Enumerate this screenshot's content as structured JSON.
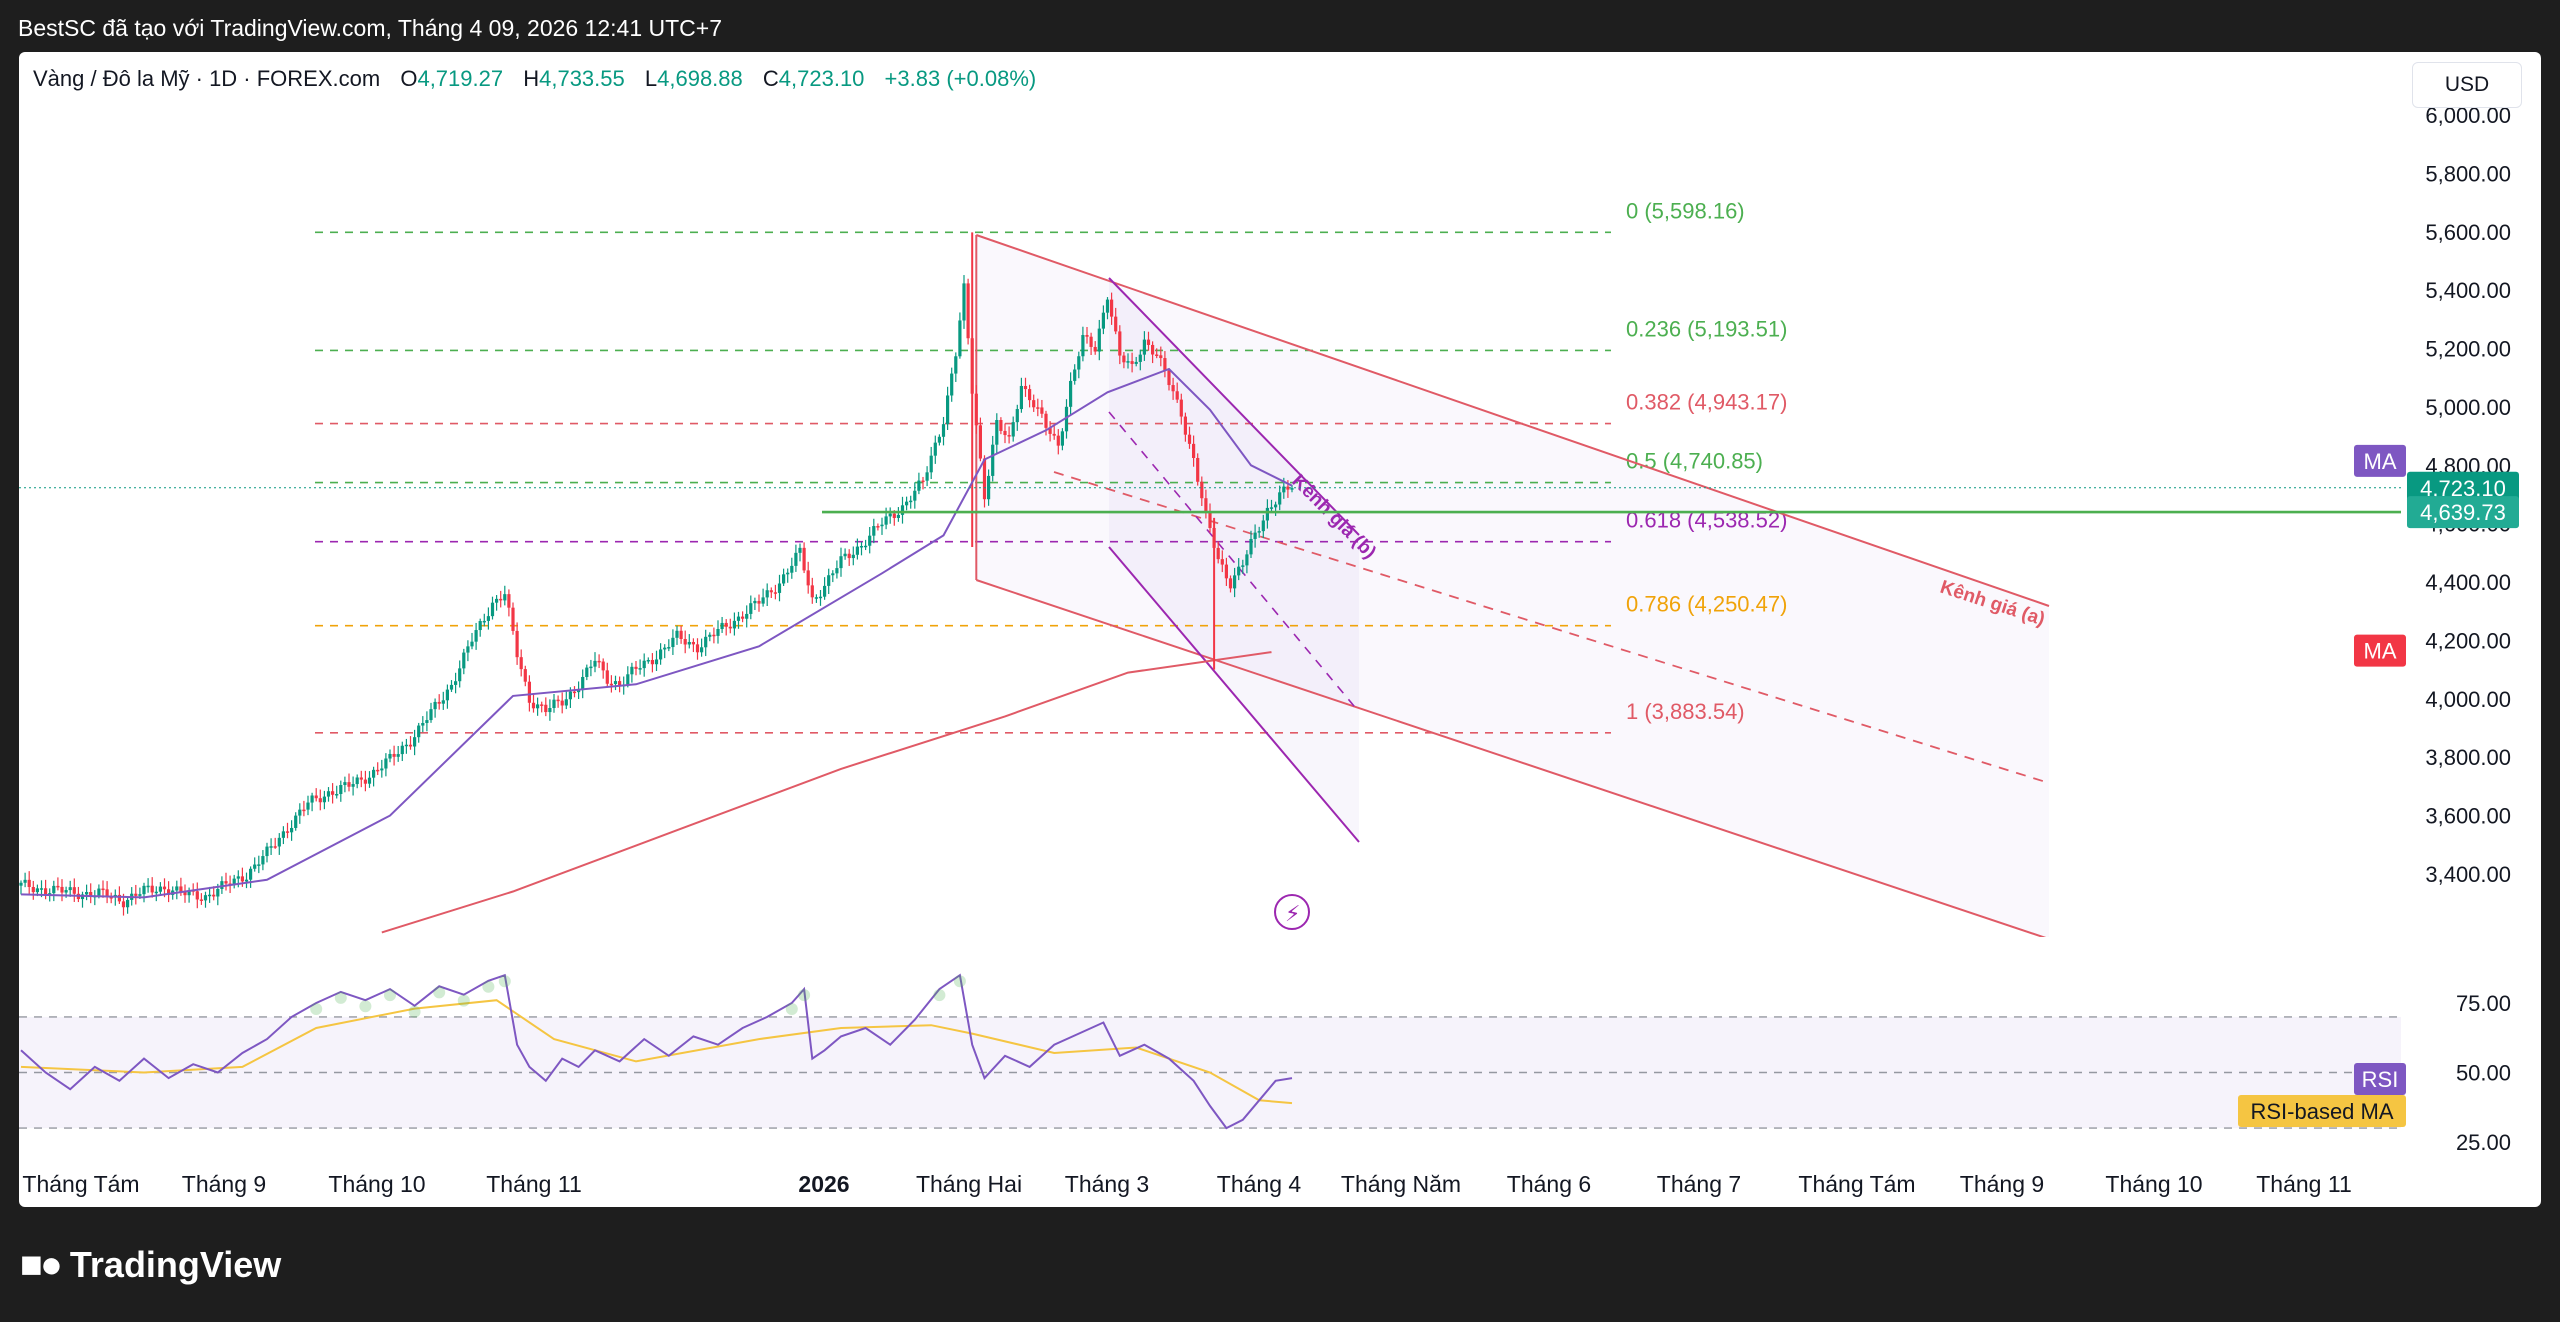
{
  "header": {
    "caption": "BestSC đã tạo với TradingView.com, Tháng 4 09, 2026 12:41 UTC+7"
  },
  "legend": {
    "symbol": "Vàng / Đô la Mỹ · 1D · FOREX.com",
    "o_label": "O",
    "o": "4,719.27",
    "h_label": "H",
    "h": "4,733.55",
    "l_label": "L",
    "l": "4,698.88",
    "c_label": "C",
    "c": "4,723.10",
    "change": "+3.83 (+0.08%)"
  },
  "currency_button": "USD",
  "footer": {
    "brand": "TradingView",
    "logo": "tradingview-logo-icon"
  },
  "colors": {
    "up": "#089981",
    "down": "#f23645",
    "fib_green": "#4caf50",
    "fib_red": "#e05a66",
    "fib_purple": "#9c27b0",
    "fib_orange": "#f0a30a",
    "ma_purple": "#7e57c2",
    "ma_red": "#e05a66",
    "rsi_line": "#7e57c2",
    "rsi_ma": "#f5c542",
    "channel_a": "#e05a66"
  },
  "chart_data": [
    {
      "type": "candlestick",
      "title": "",
      "ylim": [
        3200,
        6100
      ],
      "y_ticks": [
        "6,000.00",
        "5,800.00",
        "5,600.00",
        "5,400.00",
        "5,200.00",
        "5,000.00",
        "4,800.00",
        "4,600.00",
        "4,400.00",
        "4,200.00",
        "4,000.00",
        "3,800.00",
        "3,600.00",
        "3,400.00"
      ],
      "x_tick_labels": [
        "Tháng Tám",
        "Tháng 9",
        "Tháng 10",
        "Tháng 11",
        "2026",
        "Tháng Hai",
        "Tháng 3",
        "Tháng 4",
        "Tháng Năm",
        "Tháng 6",
        "Tháng 7",
        "Tháng Tám",
        "Tháng 9",
        "Tháng 10",
        "Tháng 11"
      ],
      "price_path": [
        [
          0,
          3360
        ],
        [
          10,
          3340
        ],
        [
          20,
          3330
        ],
        [
          25,
          3310
        ],
        [
          30,
          3340
        ],
        [
          35,
          3355
        ],
        [
          40,
          3330
        ],
        [
          45,
          3325
        ],
        [
          50,
          3360
        ],
        [
          55,
          3400
        ],
        [
          60,
          3470
        ],
        [
          65,
          3560
        ],
        [
          70,
          3640
        ],
        [
          75,
          3680
        ],
        [
          80,
          3700
        ],
        [
          85,
          3740
        ],
        [
          90,
          3790
        ],
        [
          95,
          3860
        ],
        [
          100,
          3950
        ],
        [
          105,
          4050
        ],
        [
          110,
          4200
        ],
        [
          115,
          4330
        ],
        [
          118,
          4360
        ],
        [
          121,
          4150
        ],
        [
          124,
          4000
        ],
        [
          128,
          3960
        ],
        [
          132,
          3990
        ],
        [
          136,
          4050
        ],
        [
          140,
          4130
        ],
        [
          143,
          4070
        ],
        [
          146,
          4050
        ],
        [
          150,
          4100
        ],
        [
          155,
          4150
        ],
        [
          160,
          4210
        ],
        [
          165,
          4180
        ],
        [
          170,
          4230
        ],
        [
          175,
          4280
        ],
        [
          180,
          4330
        ],
        [
          185,
          4400
        ],
        [
          190,
          4500
        ],
        [
          193,
          4340
        ],
        [
          196,
          4390
        ],
        [
          200,
          4470
        ],
        [
          205,
          4530
        ],
        [
          210,
          4600
        ],
        [
          215,
          4660
        ],
        [
          220,
          4740
        ],
        [
          225,
          4960
        ],
        [
          228,
          5180
        ],
        [
          230,
          5400
        ],
        [
          232,
          5060
        ],
        [
          235,
          4700
        ],
        [
          238,
          4940
        ],
        [
          241,
          4880
        ],
        [
          244,
          5080
        ],
        [
          247,
          5010
        ],
        [
          250,
          4930
        ],
        [
          253,
          4870
        ],
        [
          256,
          5080
        ],
        [
          259,
          5230
        ],
        [
          262,
          5200
        ],
        [
          265,
          5390
        ],
        [
          268,
          5170
        ],
        [
          271,
          5130
        ],
        [
          274,
          5230
        ],
        [
          277,
          5180
        ],
        [
          280,
          5080
        ],
        [
          283,
          4980
        ],
        [
          286,
          4820
        ],
        [
          289,
          4620
        ],
        [
          292,
          4480
        ],
        [
          295,
          4400
        ],
        [
          298,
          4460
        ],
        [
          301,
          4560
        ],
        [
          304,
          4650
        ],
        [
          307,
          4700
        ],
        [
          310,
          4723
        ]
      ],
      "candle_count_visible": 310,
      "ma_fast_path": [
        [
          0,
          3330
        ],
        [
          30,
          3320
        ],
        [
          60,
          3380
        ],
        [
          90,
          3600
        ],
        [
          120,
          4010
        ],
        [
          150,
          4050
        ],
        [
          180,
          4180
        ],
        [
          210,
          4430
        ],
        [
          225,
          4560
        ],
        [
          235,
          4820
        ],
        [
          250,
          4920
        ],
        [
          265,
          5050
        ],
        [
          280,
          5130
        ],
        [
          290,
          4990
        ],
        [
          300,
          4800
        ],
        [
          310,
          4730
        ]
      ],
      "ma_slow_path": [
        [
          88,
          3200
        ],
        [
          120,
          3340
        ],
        [
          160,
          3550
        ],
        [
          200,
          3760
        ],
        [
          240,
          3940
        ],
        [
          270,
          4090
        ],
        [
          305,
          4160
        ]
      ],
      "fib_levels": [
        {
          "ratio": "0",
          "price": 5598.16,
          "label": "0 (5,598.16)",
          "color": "#4caf50"
        },
        {
          "ratio": "0.236",
          "price": 5193.51,
          "label": "0.236 (5,193.51)",
          "color": "#4caf50"
        },
        {
          "ratio": "0.382",
          "price": 4943.17,
          "label": "0.382 (4,943.17)",
          "color": "#e05a66"
        },
        {
          "ratio": "0.5",
          "price": 4740.85,
          "label": "0.5 (4,740.85)",
          "color": "#4caf50"
        },
        {
          "ratio": "0.618",
          "price": 4538.52,
          "label": "0.618 (4,538.52)",
          "color": "#9c27b0"
        },
        {
          "ratio": "0.786",
          "price": 4250.47,
          "label": "0.786 (4,250.47)",
          "color": "#f0a30a"
        },
        {
          "ratio": "1",
          "price": 3883.54,
          "label": "1 (3,883.54)",
          "color": "#e05a66"
        }
      ],
      "horizontal_line": {
        "price": 4639.73
      },
      "channel_a_label": "Kênh giá (a)",
      "channel_b_label": "Kênh giá (b)",
      "price_labels": [
        {
          "label": "MA",
          "color": "#7e57c2",
          "price": 4815
        },
        {
          "label": "4,723.10",
          "color": "#089981",
          "price": 4723.1
        },
        {
          "label": "4,639.73",
          "color": "#22ab94",
          "price": 4639.73
        },
        {
          "label": "MA",
          "color": "#f23645",
          "price": 4165
        }
      ]
    },
    {
      "type": "line",
      "title": "",
      "ylim": [
        20,
        88
      ],
      "y_ticks": [
        "75.00",
        "50.00",
        "25.00"
      ],
      "bands": {
        "upper": 70,
        "middle": 50,
        "lower": 30
      },
      "rsi_path": [
        [
          0,
          58
        ],
        [
          6,
          50
        ],
        [
          12,
          44
        ],
        [
          18,
          52
        ],
        [
          24,
          47
        ],
        [
          30,
          55
        ],
        [
          36,
          48
        ],
        [
          42,
          53
        ],
        [
          48,
          50
        ],
        [
          54,
          57
        ],
        [
          60,
          62
        ],
        [
          66,
          70
        ],
        [
          72,
          75
        ],
        [
          78,
          79
        ],
        [
          84,
          76
        ],
        [
          90,
          80
        ],
        [
          96,
          74
        ],
        [
          102,
          81
        ],
        [
          108,
          78
        ],
        [
          114,
          83
        ],
        [
          118,
          85
        ],
        [
          121,
          60
        ],
        [
          124,
          52
        ],
        [
          128,
          47
        ],
        [
          132,
          55
        ],
        [
          136,
          52
        ],
        [
          140,
          58
        ],
        [
          146,
          54
        ],
        [
          152,
          62
        ],
        [
          158,
          56
        ],
        [
          164,
          63
        ],
        [
          170,
          60
        ],
        [
          176,
          66
        ],
        [
          182,
          70
        ],
        [
          188,
          75
        ],
        [
          191,
          80
        ],
        [
          193,
          55
        ],
        [
          196,
          58
        ],
        [
          200,
          63
        ],
        [
          206,
          66
        ],
        [
          212,
          60
        ],
        [
          218,
          69
        ],
        [
          224,
          80
        ],
        [
          229,
          85
        ],
        [
          232,
          60
        ],
        [
          235,
          48
        ],
        [
          240,
          56
        ],
        [
          246,
          52
        ],
        [
          252,
          60
        ],
        [
          258,
          64
        ],
        [
          264,
          68
        ],
        [
          268,
          56
        ],
        [
          274,
          60
        ],
        [
          280,
          55
        ],
        [
          286,
          47
        ],
        [
          290,
          38
        ],
        [
          294,
          30
        ],
        [
          298,
          33
        ],
        [
          302,
          40
        ],
        [
          306,
          47
        ],
        [
          310,
          48
        ]
      ],
      "rsi_ma_path": [
        [
          0,
          52
        ],
        [
          30,
          50
        ],
        [
          54,
          52
        ],
        [
          72,
          66
        ],
        [
          96,
          73
        ],
        [
          116,
          76
        ],
        [
          130,
          62
        ],
        [
          150,
          54
        ],
        [
          180,
          62
        ],
        [
          200,
          66
        ],
        [
          222,
          67
        ],
        [
          232,
          64
        ],
        [
          252,
          57
        ],
        [
          272,
          59
        ],
        [
          290,
          50
        ],
        [
          302,
          40
        ],
        [
          310,
          39
        ]
      ],
      "legend_entries": [
        {
          "label": "RSI",
          "color": "#7e57c2"
        },
        {
          "label": "RSI-based MA",
          "color": "#f5c542"
        }
      ]
    }
  ]
}
